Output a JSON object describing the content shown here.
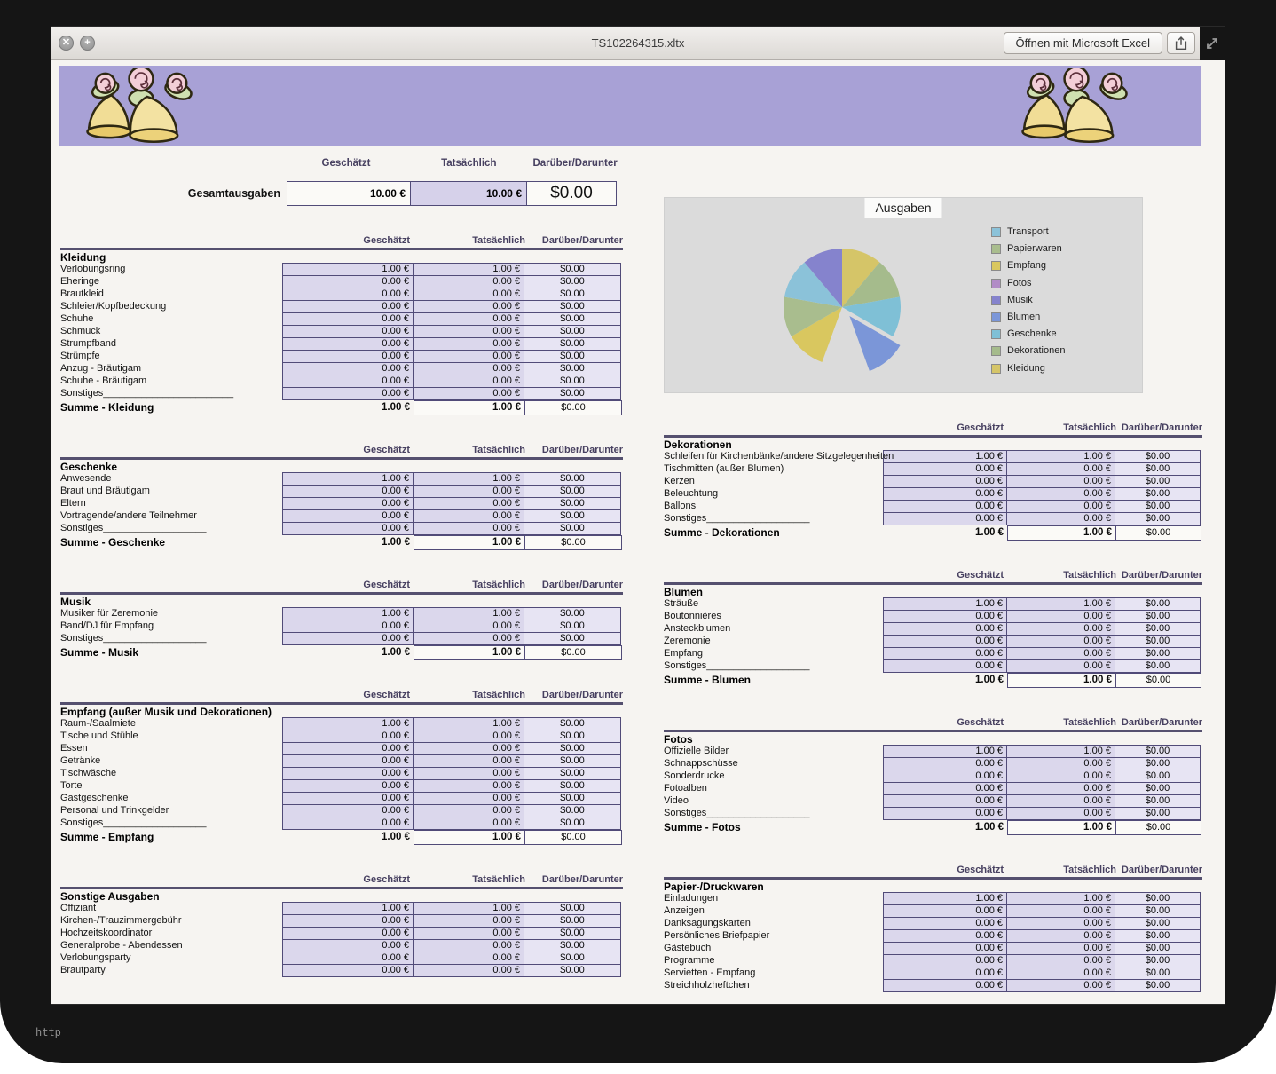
{
  "window": {
    "title": "TS102264315.xltx",
    "open_button_label": "Öffnen mit Microsoft Excel"
  },
  "icons": {
    "close": "✕",
    "zoom": "+"
  },
  "status_text": "http",
  "column_headers": {
    "geschaetzt": "Geschätzt",
    "tatsaechlich": "Tatsächlich",
    "differenz": "Darüber/Darunter"
  },
  "summary": {
    "label": "Gesamtausgaben",
    "geschaetzt": "10.00 €",
    "tatsaechlich": "10.00 €",
    "differenz": "$0.00"
  },
  "left_sections": [
    {
      "title": "Kleidung",
      "rows": [
        {
          "label": "Verlobungsring",
          "g": "1.00 €",
          "t": "1.00 €",
          "d": "$0.00"
        },
        {
          "label": "Eheringe",
          "g": "0.00 €",
          "t": "0.00 €",
          "d": "$0.00"
        },
        {
          "label": "Brautkleid",
          "g": "0.00 €",
          "t": "0.00 €",
          "d": "$0.00"
        },
        {
          "label": "Schleier/Kopfbedeckung",
          "g": "0.00 €",
          "t": "0.00 €",
          "d": "$0.00"
        },
        {
          "label": "Schuhe",
          "g": "0.00 €",
          "t": "0.00 €",
          "d": "$0.00"
        },
        {
          "label": "Schmuck",
          "g": "0.00 €",
          "t": "0.00 €",
          "d": "$0.00"
        },
        {
          "label": "Strumpfband",
          "g": "0.00 €",
          "t": "0.00 €",
          "d": "$0.00"
        },
        {
          "label": "Strümpfe",
          "g": "0.00 €",
          "t": "0.00 €",
          "d": "$0.00"
        },
        {
          "label": "Anzug - Bräutigam",
          "g": "0.00 €",
          "t": "0.00 €",
          "d": "$0.00"
        },
        {
          "label": "Schuhe - Bräutigam",
          "g": "0.00 €",
          "t": "0.00 €",
          "d": "$0.00"
        },
        {
          "label": "Sonstiges________________________",
          "g": "0.00 €",
          "t": "0.00 €",
          "d": "$0.00"
        }
      ],
      "sum": {
        "label": "Summe - Kleidung",
        "g": "1.00 €",
        "t": "1.00 €",
        "d": "$0.00"
      }
    },
    {
      "title": "Geschenke",
      "rows": [
        {
          "label": "Anwesende",
          "g": "1.00 €",
          "t": "1.00 €",
          "d": "$0.00"
        },
        {
          "label": "Braut und Bräutigam",
          "g": "0.00 €",
          "t": "0.00 €",
          "d": "$0.00"
        },
        {
          "label": "Eltern",
          "g": "0.00 €",
          "t": "0.00 €",
          "d": "$0.00"
        },
        {
          "label": "Vortragende/andere Teilnehmer",
          "g": "0.00 €",
          "t": "0.00 €",
          "d": "$0.00"
        },
        {
          "label": "Sonstiges___________________",
          "g": "0.00 €",
          "t": "0.00 €",
          "d": "$0.00"
        }
      ],
      "sum": {
        "label": "Summe - Geschenke",
        "g": "1.00 €",
        "t": "1.00 €",
        "d": "$0.00"
      }
    },
    {
      "title": "Musik",
      "rows": [
        {
          "label": "Musiker für Zeremonie",
          "g": "1.00 €",
          "t": "1.00 €",
          "d": "$0.00"
        },
        {
          "label": "Band/DJ für Empfang",
          "g": "0.00 €",
          "t": "0.00 €",
          "d": "$0.00"
        },
        {
          "label": "Sonstiges___________________",
          "g": "0.00 €",
          "t": "0.00 €",
          "d": "$0.00"
        }
      ],
      "sum": {
        "label": "Summe - Musik",
        "g": "1.00 €",
        "t": "1.00 €",
        "d": "$0.00"
      }
    },
    {
      "title": "Empfang (außer Musik und Dekorationen)",
      "rows": [
        {
          "label": "Raum-/Saalmiete",
          "g": "1.00 €",
          "t": "1.00 €",
          "d": "$0.00"
        },
        {
          "label": "Tische und Stühle",
          "g": "0.00 €",
          "t": "0.00 €",
          "d": "$0.00"
        },
        {
          "label": "Essen",
          "g": "0.00 €",
          "t": "0.00 €",
          "d": "$0.00"
        },
        {
          "label": "Getränke",
          "g": "0.00 €",
          "t": "0.00 €",
          "d": "$0.00"
        },
        {
          "label": "Tischwäsche",
          "g": "0.00 €",
          "t": "0.00 €",
          "d": "$0.00"
        },
        {
          "label": "Torte",
          "g": "0.00 €",
          "t": "0.00 €",
          "d": "$0.00"
        },
        {
          "label": "Gastgeschenke",
          "g": "0.00 €",
          "t": "0.00 €",
          "d": "$0.00"
        },
        {
          "label": "Personal und Trinkgelder",
          "g": "0.00 €",
          "t": "0.00 €",
          "d": "$0.00"
        },
        {
          "label": "Sonstiges___________________",
          "g": "0.00 €",
          "t": "0.00 €",
          "d": "$0.00"
        }
      ],
      "sum": {
        "label": "Summe - Empfang",
        "g": "1.00 €",
        "t": "1.00 €",
        "d": "$0.00"
      }
    },
    {
      "title": "Sonstige Ausgaben",
      "rows": [
        {
          "label": "Offiziant",
          "g": "1.00 €",
          "t": "1.00 €",
          "d": "$0.00"
        },
        {
          "label": "Kirchen-/Trauzimmergebühr",
          "g": "0.00 €",
          "t": "0.00 €",
          "d": "$0.00"
        },
        {
          "label": "Hochzeitskoordinator",
          "g": "0.00 €",
          "t": "0.00 €",
          "d": "$0.00"
        },
        {
          "label": "Generalprobe - Abendessen",
          "g": "0.00 €",
          "t": "0.00 €",
          "d": "$0.00"
        },
        {
          "label": "Verlobungsparty",
          "g": "0.00 €",
          "t": "0.00 €",
          "d": "$0.00"
        },
        {
          "label": "Brautparty",
          "g": "0.00 €",
          "t": "0.00 €",
          "d": "$0.00"
        }
      ]
    }
  ],
  "right_sections": [
    {
      "title": "Dekorationen",
      "rows": [
        {
          "label": "Schleifen für Kirchenbänke/andere Sitzgelegenheiten",
          "g": "1.00 €",
          "t": "1.00 €",
          "d": "$0.00"
        },
        {
          "label": "Tischmitten (außer Blumen)",
          "g": "0.00 €",
          "t": "0.00 €",
          "d": "$0.00"
        },
        {
          "label": "Kerzen",
          "g": "0.00 €",
          "t": "0.00 €",
          "d": "$0.00"
        },
        {
          "label": "Beleuchtung",
          "g": "0.00 €",
          "t": "0.00 €",
          "d": "$0.00"
        },
        {
          "label": "Ballons",
          "g": "0.00 €",
          "t": "0.00 €",
          "d": "$0.00"
        },
        {
          "label": "Sonstiges___________________",
          "g": "0.00 €",
          "t": "0.00 €",
          "d": "$0.00"
        }
      ],
      "sum": {
        "label": "Summe - Dekorationen",
        "g": "1.00 €",
        "t": "1.00 €",
        "d": "$0.00"
      }
    },
    {
      "title": "Blumen",
      "rows": [
        {
          "label": "Sträuße",
          "g": "1.00 €",
          "t": "1.00 €",
          "d": "$0.00"
        },
        {
          "label": "Boutonnières",
          "g": "0.00 €",
          "t": "0.00 €",
          "d": "$0.00"
        },
        {
          "label": "Ansteckblumen",
          "g": "0.00 €",
          "t": "0.00 €",
          "d": "$0.00"
        },
        {
          "label": "Zeremonie",
          "g": "0.00 €",
          "t": "0.00 €",
          "d": "$0.00"
        },
        {
          "label": "Empfang",
          "g": "0.00 €",
          "t": "0.00 €",
          "d": "$0.00"
        },
        {
          "label": "Sonstiges___________________",
          "g": "0.00 €",
          "t": "0.00 €",
          "d": "$0.00"
        }
      ],
      "sum": {
        "label": "Summe - Blumen",
        "g": "1.00 €",
        "t": "1.00 €",
        "d": "$0.00"
      }
    },
    {
      "title": "Fotos",
      "rows": [
        {
          "label": "Offizielle Bilder",
          "g": "1.00 €",
          "t": "1.00 €",
          "d": "$0.00"
        },
        {
          "label": "Schnappschüsse",
          "g": "0.00 €",
          "t": "0.00 €",
          "d": "$0.00"
        },
        {
          "label": "Sonderdrucke",
          "g": "0.00 €",
          "t": "0.00 €",
          "d": "$0.00"
        },
        {
          "label": "Fotoalben",
          "g": "0.00 €",
          "t": "0.00 €",
          "d": "$0.00"
        },
        {
          "label": "Video",
          "g": "0.00 €",
          "t": "0.00 €",
          "d": "$0.00"
        },
        {
          "label": "Sonstiges___________________",
          "g": "0.00 €",
          "t": "0.00 €",
          "d": "$0.00"
        }
      ],
      "sum": {
        "label": "Summe - Fotos",
        "g": "1.00 €",
        "t": "1.00 €",
        "d": "$0.00"
      }
    },
    {
      "title": "Papier-/Druckwaren",
      "rows": [
        {
          "label": "Einladungen",
          "g": "1.00 €",
          "t": "1.00 €",
          "d": "$0.00"
        },
        {
          "label": "Anzeigen",
          "g": "0.00 €",
          "t": "0.00 €",
          "d": "$0.00"
        },
        {
          "label": "Danksagungskarten",
          "g": "0.00 €",
          "t": "0.00 €",
          "d": "$0.00"
        },
        {
          "label": "Persönliches Briefpapier",
          "g": "0.00 €",
          "t": "0.00 €",
          "d": "$0.00"
        },
        {
          "label": "Gästebuch",
          "g": "0.00 €",
          "t": "0.00 €",
          "d": "$0.00"
        },
        {
          "label": "Programme",
          "g": "0.00 €",
          "t": "0.00 €",
          "d": "$0.00"
        },
        {
          "label": "Servietten - Empfang",
          "g": "0.00 €",
          "t": "0.00 €",
          "d": "$0.00"
        },
        {
          "label": "Streichholzheftchen",
          "g": "0.00 €",
          "t": "0.00 €",
          "d": "$0.00"
        }
      ]
    }
  ],
  "chart_data": {
    "type": "pie",
    "title": "Ausgaben",
    "legend_position": "right",
    "units": "€",
    "series": [
      {
        "name": "Transport",
        "value": 1.0,
        "color": "#8bc2d9"
      },
      {
        "name": "Papierwaren",
        "value": 1.0,
        "color": "#a9bd8e"
      },
      {
        "name": "Empfang",
        "value": 1.0,
        "color": "#d9c75f"
      },
      {
        "name": "Fotos",
        "value": 1.0,
        "color": "#b18cc6"
      },
      {
        "name": "Musik",
        "value": 1.0,
        "color": "#8583cd"
      },
      {
        "name": "Blumen",
        "value": 1.0,
        "color": "#7b96d8"
      },
      {
        "name": "Geschenke",
        "value": 1.0,
        "color": "#7fc0d6"
      },
      {
        "name": "Dekorationen",
        "value": 1.0,
        "color": "#a5bb8c"
      },
      {
        "name": "Kleidung",
        "value": 1.0,
        "color": "#d5c568"
      }
    ],
    "plot_order_clockwise_from_top": [
      "Kleidung",
      "Dekorationen",
      "Geschenke",
      "Blumen",
      "Fotos",
      "Empfang",
      "Papierwaren",
      "Transport",
      "Musik"
    ],
    "exploded_slice": "Blumen",
    "hidden_slice": "Fotos"
  }
}
